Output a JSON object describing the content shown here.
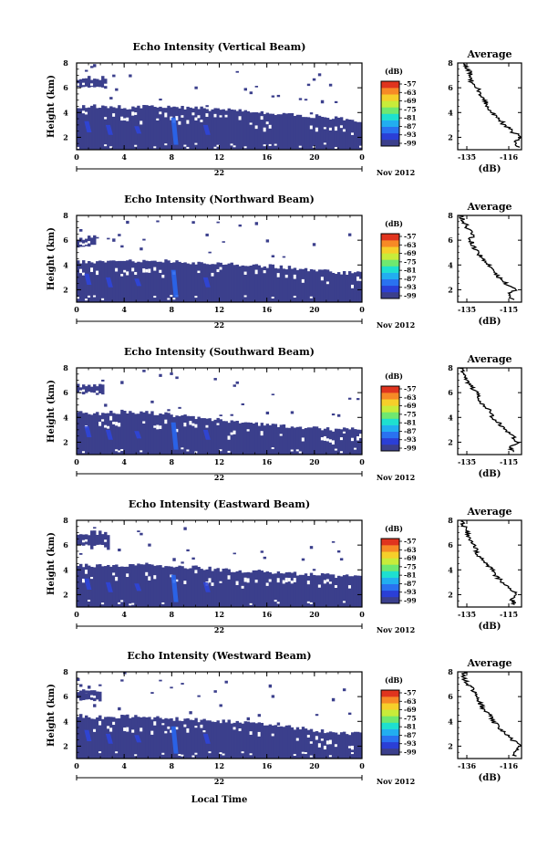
{
  "figure": {
    "xlabel": "Local Time",
    "day_label": "22",
    "date_label": "Nov 2012",
    "colorbar_unit": "(dB)",
    "colorbar_ticks": [
      "-57",
      "-63",
      "-69",
      "-75",
      "-81",
      "-87",
      "-93",
      "-99"
    ],
    "colorbar_colors": [
      "#3b3f8c",
      "#2b3fd6",
      "#2a72f0",
      "#22aef0",
      "#1ee0d0",
      "#6fe870",
      "#c8ec3a",
      "#f6cf2a",
      "#f78a26",
      "#e0341e"
    ],
    "avg_title": "Average",
    "avg_xlabel": "(dB)"
  },
  "chart_data": [
    {
      "type": "heatmap",
      "title": "Echo Intensity (Vertical Beam)",
      "ylabel": "Height (km)",
      "xlim": [
        0,
        24
      ],
      "ylim": [
        1,
        8
      ],
      "xticks": [
        "0",
        "4",
        "8",
        "12",
        "16",
        "20",
        "0"
      ],
      "yticks": [
        "2",
        "4",
        "6",
        "8"
      ],
      "band_top_km": [
        4.5,
        4.5,
        4.4,
        4.5,
        4.4,
        4.4,
        4.2,
        4.1,
        4.0,
        3.9,
        3.7,
        3.5,
        3.3
      ],
      "upper_layer_km": [
        5.8,
        7.0
      ],
      "upper_layer_hours": [
        0,
        2.6
      ],
      "profile": {
        "title": "Average",
        "xlabel": "(dB)",
        "xticks": [
          "-135",
          "-116"
        ],
        "xlim": [
          -135,
          -116
        ],
        "ylim": [
          1,
          8
        ],
        "yticks": [
          "2",
          "4",
          "6",
          "8"
        ],
        "height_km": [
          1.2,
          1.6,
          2.0,
          2.5,
          3.0,
          3.5,
          4.0,
          4.5,
          5.0,
          5.5,
          6.0,
          6.5,
          7.0,
          7.5,
          8.0
        ],
        "values_db": [
          -117,
          -118,
          -116,
          -119,
          -121,
          -123,
          -125,
          -126,
          -127,
          -128,
          -129,
          -131,
          -131,
          -132,
          -133
        ]
      }
    },
    {
      "type": "heatmap",
      "title": "Echo Intensity (Northward Beam)",
      "ylabel": "Height (km)",
      "xlim": [
        0,
        24
      ],
      "ylim": [
        1,
        8
      ],
      "xticks": [
        "0",
        "4",
        "8",
        "12",
        "16",
        "20",
        "0"
      ],
      "yticks": [
        "2",
        "4",
        "6",
        "8"
      ],
      "band_top_km": [
        4.3,
        4.2,
        4.3,
        4.4,
        4.3,
        4.2,
        4.1,
        4.0,
        3.9,
        3.8,
        3.6,
        3.4,
        3.3
      ],
      "upper_layer_km": [
        5.4,
        6.4
      ],
      "upper_layer_hours": [
        0,
        1.6
      ],
      "profile": {
        "title": "Average",
        "xlabel": "(dB)",
        "xticks": [
          "-135",
          "-115"
        ],
        "xlim": [
          -135,
          -115
        ],
        "ylim": [
          1,
          8
        ],
        "yticks": [
          "2",
          "4",
          "6",
          "8"
        ],
        "height_km": [
          1.2,
          1.6,
          2.0,
          2.5,
          3.0,
          3.5,
          4.0,
          4.5,
          5.0,
          5.5,
          6.0,
          6.5,
          7.0,
          7.5,
          8.0
        ],
        "values_db": [
          -118,
          -119,
          -117,
          -120,
          -122,
          -124,
          -125,
          -127,
          -129,
          -130,
          -131,
          -130,
          -132,
          -133,
          -134
        ]
      }
    },
    {
      "type": "heatmap",
      "title": "Echo Intensity (Southward Beam)",
      "ylabel": "Height (km)",
      "xlim": [
        0,
        24
      ],
      "ylim": [
        1,
        8
      ],
      "xticks": [
        "0",
        "4",
        "8",
        "12",
        "16",
        "20",
        "0"
      ],
      "yticks": [
        "2",
        "4",
        "6",
        "8"
      ],
      "band_top_km": [
        4.4,
        4.3,
        4.5,
        4.4,
        4.2,
        4.0,
        3.8,
        3.6,
        3.4,
        3.2,
        3.1,
        3.0,
        3.1
      ],
      "upper_layer_km": [
        5.8,
        6.8
      ],
      "upper_layer_hours": [
        0,
        2.2
      ],
      "profile": {
        "title": "Average",
        "xlabel": "(dB)",
        "xticks": [
          "-135",
          "-115"
        ],
        "xlim": [
          -135,
          -115
        ],
        "ylim": [
          1,
          8
        ],
        "yticks": [
          "2",
          "4",
          "6",
          "8"
        ],
        "height_km": [
          1.2,
          1.6,
          2.0,
          2.5,
          3.0,
          3.5,
          4.0,
          4.5,
          5.0,
          5.5,
          6.0,
          6.5,
          7.0,
          7.5,
          8.0
        ],
        "values_db": [
          -117,
          -119,
          -116,
          -118,
          -120,
          -122,
          -124,
          -125,
          -127,
          -128,
          -129,
          -131,
          -132,
          -133,
          -134
        ]
      }
    },
    {
      "type": "heatmap",
      "title": "Echo Intensity (Eastward Beam)",
      "ylabel": "Height (km)",
      "xlim": [
        0,
        24
      ],
      "ylim": [
        1,
        8
      ],
      "xticks": [
        "0",
        "4",
        "8",
        "12",
        "16",
        "20",
        "0"
      ],
      "yticks": [
        "2",
        "4",
        "6",
        "8"
      ],
      "band_top_km": [
        4.4,
        4.3,
        4.4,
        4.4,
        4.3,
        4.2,
        4.0,
        3.9,
        3.8,
        3.7,
        3.6,
        3.5,
        3.5
      ],
      "upper_layer_km": [
        5.8,
        7.2
      ],
      "upper_layer_hours": [
        0,
        2.8
      ],
      "profile": {
        "title": "Average",
        "xlabel": "(dB)",
        "xticks": [
          "-135",
          "-115"
        ],
        "xlim": [
          -135,
          -115
        ],
        "ylim": [
          1,
          8
        ],
        "yticks": [
          "2",
          "4",
          "6",
          "8"
        ],
        "height_km": [
          1.2,
          1.6,
          2.0,
          2.5,
          3.0,
          3.5,
          4.0,
          4.5,
          5.0,
          5.5,
          6.0,
          6.5,
          7.0,
          7.5,
          8.0
        ],
        "values_db": [
          -117,
          -118,
          -116,
          -119,
          -121,
          -123,
          -124,
          -126,
          -128,
          -129,
          -130,
          -131,
          -132,
          -133,
          -134
        ]
      }
    },
    {
      "type": "heatmap",
      "title": "Echo Intensity (Westward Beam)",
      "ylabel": "Height (km)",
      "xlim": [
        0,
        24
      ],
      "ylim": [
        1,
        8
      ],
      "xticks": [
        "0",
        "4",
        "8",
        "12",
        "16",
        "20",
        "0"
      ],
      "yticks": [
        "2",
        "4",
        "6",
        "8"
      ],
      "band_top_km": [
        4.5,
        4.3,
        4.4,
        4.3,
        4.2,
        4.1,
        4.0,
        3.9,
        3.7,
        3.5,
        3.3,
        3.1,
        3.0
      ],
      "upper_layer_km": [
        5.6,
        6.6
      ],
      "upper_layer_hours": [
        0,
        2.0
      ],
      "profile": {
        "title": "Average",
        "xlabel": "(dB)",
        "xticks": [
          "-136",
          "-116"
        ],
        "xlim": [
          -136,
          -116
        ],
        "ylim": [
          1,
          8
        ],
        "yticks": [
          "2",
          "4",
          "6",
          "8"
        ],
        "height_km": [
          1.2,
          1.6,
          2.0,
          2.5,
          3.0,
          3.5,
          4.0,
          4.5,
          5.0,
          5.5,
          6.0,
          6.5,
          7.0,
          7.5,
          8.0
        ],
        "values_db": [
          -118,
          -118,
          -116,
          -119,
          -121,
          -123,
          -125,
          -126,
          -128,
          -129,
          -130,
          -131,
          -133,
          -134,
          -134
        ]
      }
    }
  ]
}
